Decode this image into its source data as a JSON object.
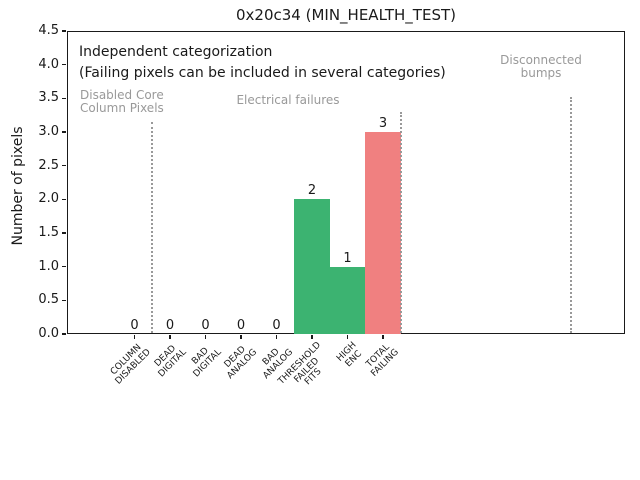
{
  "chart_data": {
    "type": "bar",
    "title": "0x20c34 (MIN_HEALTH_TEST)",
    "ylabel": "Number of pixels",
    "ylim": [
      0,
      4.5
    ],
    "ytick_step": 0.5,
    "grid": false,
    "legend": "none",
    "categories": [
      [
        "COLUMN",
        "DISABLED"
      ],
      [
        "DEAD",
        "DIGITAL"
      ],
      [
        "BAD",
        "DIGITAL"
      ],
      [
        "DEAD",
        "ANALOG"
      ],
      [
        "BAD",
        "ANALOG"
      ],
      [
        "THRESHOLD",
        "FAILED",
        "FITS"
      ],
      [
        "HIGH",
        "ENC"
      ],
      [
        "TOTAL",
        "FAILING"
      ]
    ],
    "values": [
      0,
      0,
      0,
      0,
      0,
      2,
      1,
      3
    ],
    "value_labels": [
      "0",
      "0",
      "0",
      "0",
      "0",
      "2",
      "1",
      "3"
    ],
    "bar_colors": [
      "#3cb371",
      "#3cb371",
      "#3cb371",
      "#3cb371",
      "#3cb371",
      "#3cb371",
      "#3cb371",
      "#f08080"
    ],
    "annotations": {
      "line1": "Independent categorization",
      "line2": "(Failing pixels can be included in several categories)"
    },
    "group_labels": [
      {
        "lines": [
          "Disabled Core",
          "Column Pixels"
        ]
      },
      {
        "lines": [
          "Electrical failures"
        ]
      },
      {
        "lines": [
          "Disconnected",
          "bumps"
        ]
      }
    ],
    "separators_x_categories": [
      0.5,
      7.5,
      12.3
    ],
    "colors": {
      "bar_green": "#3cb371",
      "bar_red": "#f08080",
      "annotation_gray": "#999999",
      "axis_black": "#1a1a1a"
    }
  }
}
